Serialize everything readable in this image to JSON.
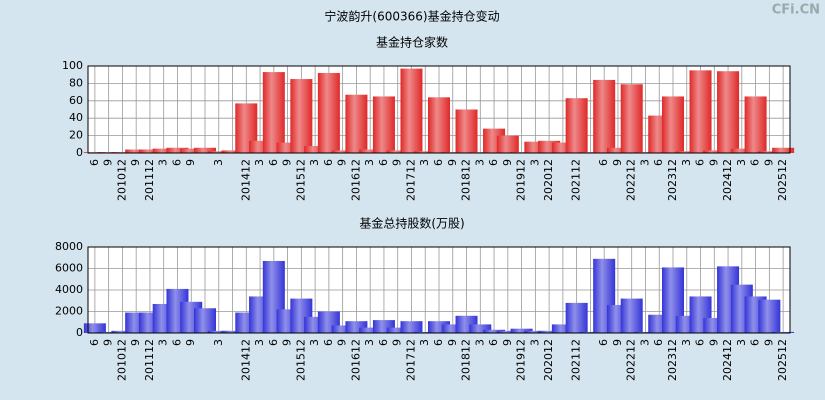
{
  "page_title": "宁波韵升(600366)基金持仓变动",
  "watermark": "CFi.CN",
  "chart_data": [
    {
      "type": "bar",
      "title": "基金持仓家数",
      "color": "#e02828",
      "categories": [
        "6",
        "9",
        "201012",
        "9",
        "201112",
        "3",
        "6",
        "9",
        null,
        "3",
        null,
        "201412",
        "3",
        "6",
        "9",
        "201512",
        "3",
        "6",
        "9",
        "201612",
        "3",
        "6",
        "9",
        "201712",
        "3",
        "6",
        "9",
        "201812",
        "3",
        "6",
        "9",
        "201912",
        "3",
        "202012",
        null,
        "202112",
        null,
        "6",
        "9",
        "202212",
        "3",
        "6",
        "202312",
        "3",
        "6",
        "9",
        "202412",
        "3",
        "6",
        "9",
        "202512"
      ],
      "values": [
        1,
        1,
        1,
        4,
        4,
        5,
        6,
        5,
        6,
        2,
        3,
        57,
        14,
        93,
        12,
        85,
        8,
        92,
        3,
        67,
        4,
        65,
        3,
        97,
        2,
        64,
        1,
        50,
        1,
        28,
        20,
        1,
        13,
        14,
        12,
        63,
        1,
        84,
        6,
        79,
        1,
        43,
        65,
        2,
        95,
        3,
        94,
        5,
        65,
        2,
        6
      ],
      "ylim": [
        0,
        100
      ],
      "yticks": [
        0,
        20,
        40,
        60,
        80,
        100
      ],
      "grid": true
    },
    {
      "type": "bar",
      "title": "基金总持股数(万股)",
      "color": "#3434d8",
      "categories": [
        "6",
        "9",
        "201012",
        "9",
        "201112",
        "3",
        "6",
        "9",
        null,
        "3",
        null,
        "201412",
        "3",
        "6",
        "9",
        "201512",
        "3",
        "6",
        "9",
        "201612",
        "3",
        "6",
        "9",
        "201712",
        "3",
        "6",
        "9",
        "201812",
        "3",
        "6",
        "9",
        "201912",
        "3",
        "202012",
        null,
        "202112",
        null,
        "6",
        "9",
        "202212",
        "3",
        "6",
        "202312",
        "3",
        "6",
        "9",
        "202412",
        "3",
        "6",
        "9",
        "202512"
      ],
      "values": [
        900,
        100,
        200,
        1900,
        1900,
        2700,
        4100,
        2900,
        2300,
        200,
        200,
        1900,
        3400,
        6700,
        2200,
        3200,
        1500,
        2000,
        700,
        1100,
        500,
        1200,
        500,
        1100,
        100,
        1100,
        800,
        1600,
        800,
        300,
        200,
        400,
        200,
        200,
        800,
        2800,
        100,
        6900,
        2600,
        3200,
        100,
        1700,
        6100,
        1600,
        3400,
        1400,
        6200,
        4500,
        3400,
        3100,
        100
      ],
      "ylim": [
        0,
        8000
      ],
      "yticks": [
        0,
        2000,
        4000,
        6000,
        8000
      ],
      "grid": true
    }
  ]
}
